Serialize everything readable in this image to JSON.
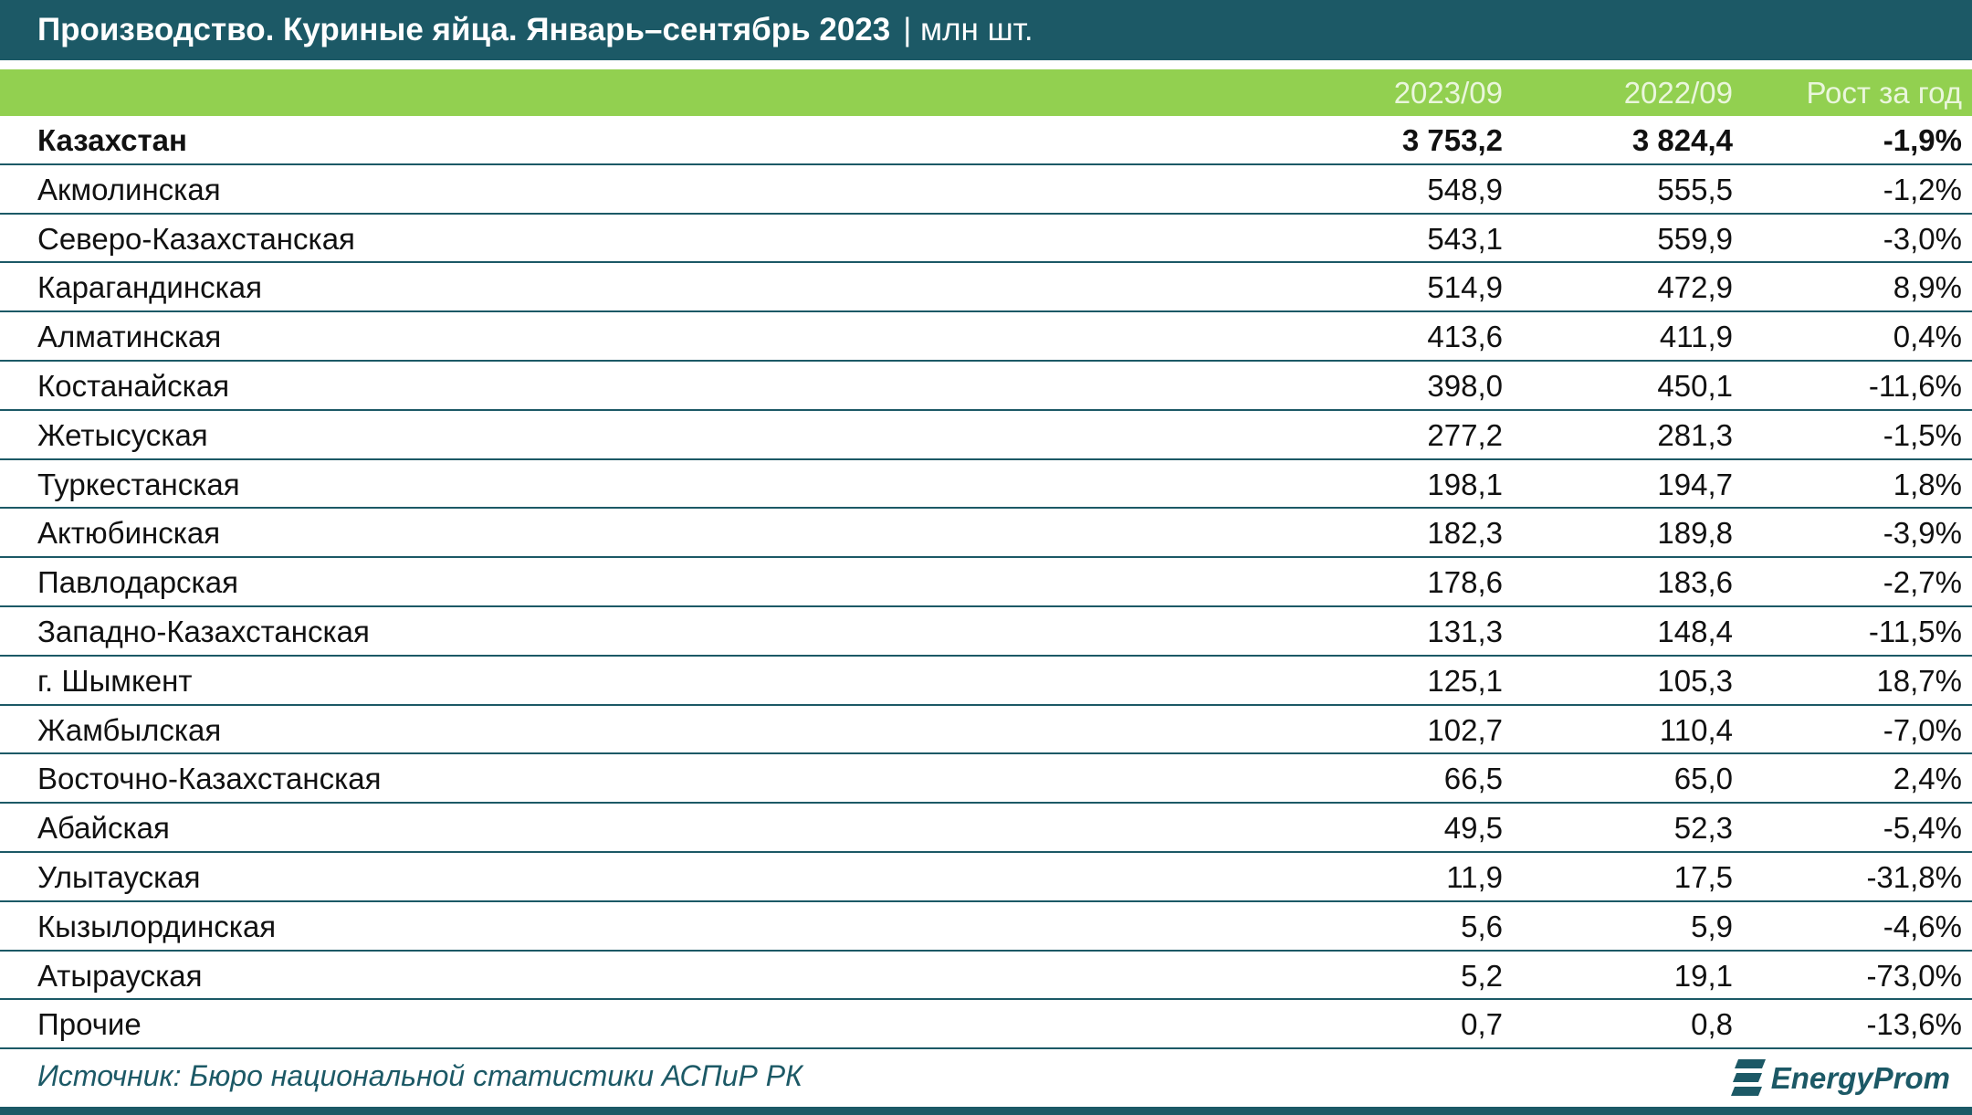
{
  "header": {
    "title": "Производство. Куриные яйца. Январь–сентябрь 2023",
    "unit": "| млн шт."
  },
  "table": {
    "columns": [
      "2023/09",
      "2022/09",
      "Рост за год"
    ],
    "rows": [
      [
        "Казахстан",
        "3 753,2",
        "3 824,4",
        "-1,9%"
      ],
      [
        "Акмолинская",
        "548,9",
        "555,5",
        "-1,2%"
      ],
      [
        "Северо-Казахстанская",
        "543,1",
        "559,9",
        "-3,0%"
      ],
      [
        "Карагандинская",
        "514,9",
        "472,9",
        "8,9%"
      ],
      [
        "Алматинская",
        "413,6",
        "411,9",
        "0,4%"
      ],
      [
        "Костанайская",
        "398,0",
        "450,1",
        "-11,6%"
      ],
      [
        "Жетысуская",
        "277,2",
        "281,3",
        "-1,5%"
      ],
      [
        "Туркестанская",
        "198,1",
        "194,7",
        "1,8%"
      ],
      [
        "Актюбинская",
        "182,3",
        "189,8",
        "-3,9%"
      ],
      [
        "Павлодарская",
        "178,6",
        "183,6",
        "-2,7%"
      ],
      [
        "Западно-Казахстанская",
        "131,3",
        "148,4",
        "-11,5%"
      ],
      [
        "г. Шымкент",
        "125,1",
        "105,3",
        "18,7%"
      ],
      [
        "Жамбылская",
        "102,7",
        "110,4",
        "-7,0%"
      ],
      [
        "Восточно-Казахстанская",
        "66,5",
        "65,0",
        "2,4%"
      ],
      [
        "Абайская",
        "49,5",
        "52,3",
        "-5,4%"
      ],
      [
        "Улытауская",
        "11,9",
        "17,5",
        "-31,8%"
      ],
      [
        "Кызылординская",
        "5,6",
        "5,9",
        "-4,6%"
      ],
      [
        "Атырауская",
        "5,2",
        "19,1",
        "-73,0%"
      ],
      [
        "Прочие",
        "0,7",
        "0,8",
        "-13,6%"
      ]
    ]
  },
  "footer": {
    "source": "Источник: Бюро национальной статистики АСПиР РК",
    "logo": "EnergyProm"
  }
}
